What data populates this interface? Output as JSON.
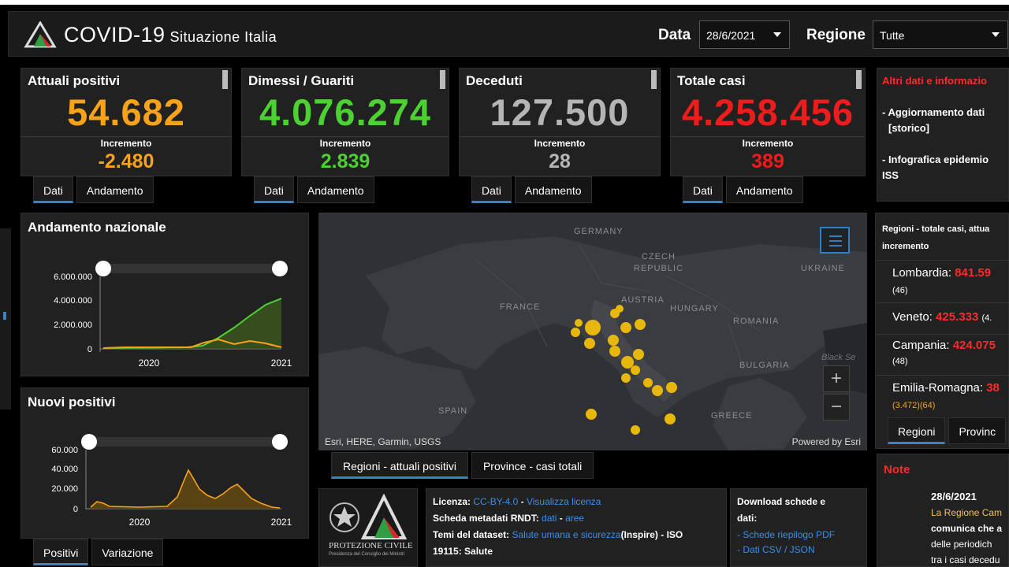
{
  "header": {
    "title": "COVID-19",
    "subtitle": "Situazione Italia",
    "date_label": "Data",
    "date_value": "28/6/2021",
    "region_label": "Regione",
    "region_value": "Tutte"
  },
  "kpis": [
    {
      "title": "Attuali positivi",
      "value": "54.682",
      "inc_label": "Incremento",
      "inc": "-2.480",
      "color": "#f7a21b"
    },
    {
      "title": "Dimessi / Guariti",
      "value": "4.076.274",
      "inc_label": "Incremento",
      "inc": "2.839",
      "color": "#4cd132"
    },
    {
      "title": "Deceduti",
      "value": "127.500",
      "inc_label": "Incremento",
      "inc": "28",
      "color": "#b5b5b5"
    },
    {
      "title": "Totale casi",
      "value": "4.258.456",
      "inc_label": "Incremento",
      "inc": "389",
      "color": "#ef1c1c"
    }
  ],
  "kpi_tabs": {
    "dati": "Dati",
    "andamento": "Andamento"
  },
  "side_info": {
    "title": "Altri dati e informazio",
    "item1": "- Aggiornamento dati",
    "item1b": "[storico]",
    "item2": "- Infografica epidemio",
    "item2b": "ISS"
  },
  "trend": {
    "title": "Andamento nazionale",
    "y_ticks": [
      "6.000.000",
      "4.000.000",
      "2.000.000",
      "0"
    ],
    "x_ticks": [
      "2020",
      "2021"
    ]
  },
  "new_pos": {
    "title": "Nuovi positivi",
    "y_ticks": [
      "60.000",
      "40.000",
      "20.000",
      "0"
    ],
    "x_ticks": [
      "2020",
      "2021"
    ],
    "tabs": {
      "positivi": "Positivi",
      "variazione": "Variazione"
    }
  },
  "map": {
    "labels": {
      "germany": "GERMANY",
      "czech1": "CZECH",
      "czech2": "REPUBLIC",
      "ukraine": "UKRAINE",
      "france": "FRANCE",
      "austria": "AUSTRIA",
      "hungary": "HUNGARY",
      "romania": "ROMANIA",
      "bulgaria": "BULGARIA",
      "spain": "SPAIN",
      "greece": "GREECE",
      "black_sea": "Black Se"
    },
    "attribution": "Esri, HERE, Garmin, USGS",
    "powered": "Powered by Esri",
    "tabs": {
      "regioni": "Regioni - attuali positivi",
      "province": "Province - casi totali"
    }
  },
  "regions_panel": {
    "title": "Regioni - totale casi, attua",
    "subtitle": "incremento",
    "rows": [
      {
        "name": "Lombardia:",
        "value": "841.59",
        "extra": "(46)"
      },
      {
        "name": "Veneto:",
        "value": "425.333",
        "extra": "(4."
      },
      {
        "name": "Campania:",
        "value": "424.075",
        "extra": "(48)"
      },
      {
        "name": "Emilia-Romagna:",
        "value": "38",
        "extra": "(3.472)(64)"
      }
    ],
    "tabs": {
      "regioni": "Regioni",
      "province": "Provinc"
    }
  },
  "license": {
    "l1_label": "Licenza:",
    "l1_link1": "CC-BY-4.0",
    "l1_sep": " - ",
    "l1_link2": "Visualizza licenza",
    "l2_label": "Scheda metadati RNDT:",
    "l2_link1": "dati",
    "l2_link2": "aree",
    "l3_label": "Temi del dataset:",
    "l3_link": "Salute umana e sicurezza",
    "l3_rest": "(Inspire) - ISO",
    "l4": "19115: Salute"
  },
  "download": {
    "title1": "Download schede e",
    "title2": "dati:",
    "link1": "- Schede riepilogo PDF",
    "link2": "- Dati CSV / JSON"
  },
  "logo_text": "PROTEZIONE CIVILE",
  "logo_sub": "Presidenza del Consiglio dei Ministri",
  "note": {
    "title": "Note",
    "date": "28/6/2021",
    "l1": "La Regione Cam",
    "l2": "comunica che a",
    "l3": "delle periodich",
    "l4": "tra i casi decedu"
  }
}
